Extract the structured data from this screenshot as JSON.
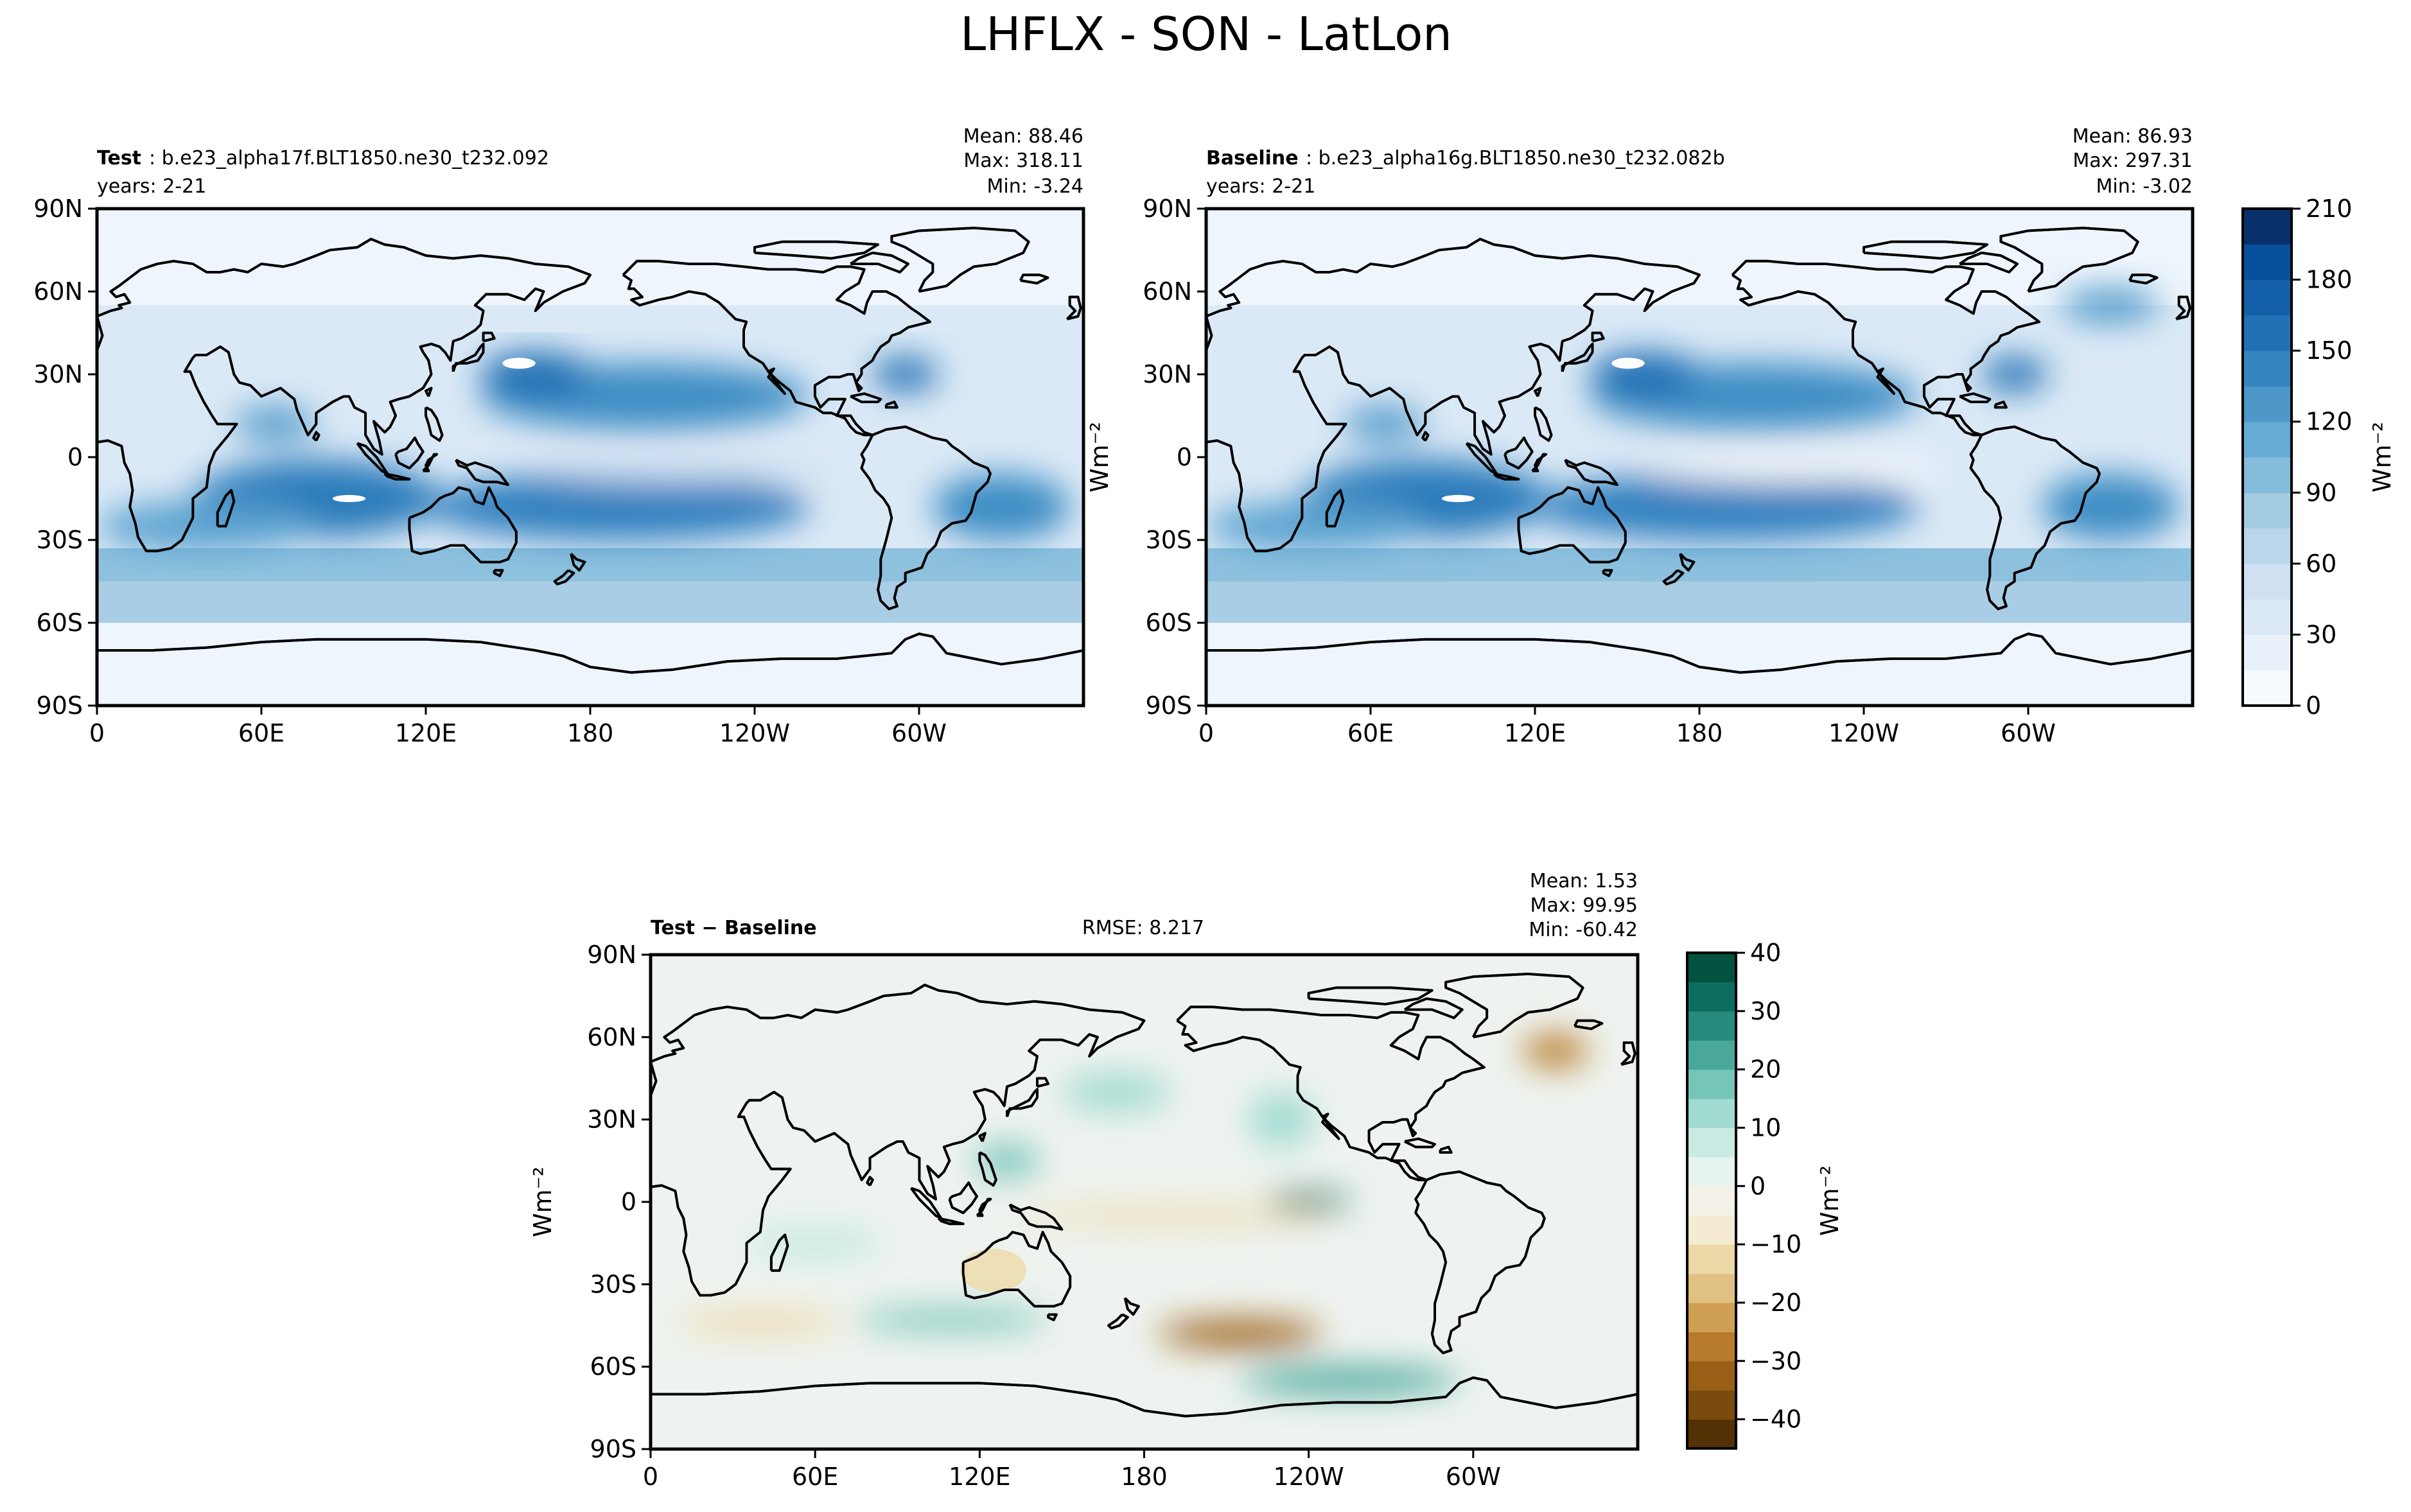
{
  "figure_title": "LHFLX - SON - LatLon",
  "chart_data": [
    {
      "type": "heatmap",
      "id": "test",
      "label_bold": "Test",
      "label_rest": ": b.e23_alpha17f.BLT1850.ne30_t232.092",
      "years": "years: 2-21",
      "stats": [
        "Mean: 88.46",
        "Max: 318.11",
        "Min: -3.24"
      ],
      "mean": 88.46,
      "max": 318.11,
      "min": -3.24,
      "xticks": [
        "0",
        "60E",
        "120E",
        "180",
        "120W",
        "60W"
      ],
      "yticks": [
        "90N",
        "60N",
        "30N",
        "0",
        "30S",
        "60S",
        "90S"
      ],
      "ylabel": ""
    },
    {
      "type": "heatmap",
      "id": "baseline",
      "label_bold": "Baseline",
      "label_rest": ": b.e23_alpha16g.BLT1850.ne30_t232.082b",
      "years": "years: 2-21",
      "stats": [
        "Mean: 86.93",
        "Max: 297.31",
        "Min: -3.02"
      ],
      "mean": 86.93,
      "max": 297.31,
      "min": -3.02,
      "xticks": [
        "0",
        "60E",
        "120E",
        "180",
        "120W",
        "60W"
      ],
      "yticks": [
        "90N",
        "60N",
        "30N",
        "0",
        "30S",
        "60S",
        "90S"
      ],
      "ylabel": "Wm⁻²"
    },
    {
      "type": "heatmap",
      "id": "diff",
      "label_bold": "Test − Baseline",
      "rmse": "RMSE: 8.217",
      "stats": [
        "Mean:  1.53",
        "Max: 99.95",
        "Min: -60.42"
      ],
      "mean": 1.53,
      "max": 99.95,
      "min": -60.42,
      "xticks": [
        "0",
        "60E",
        "120E",
        "180",
        "120W",
        "60W"
      ],
      "yticks": [
        "90N",
        "60N",
        "30N",
        "0",
        "30S",
        "60S",
        "90S"
      ],
      "ylabel": "Wm⁻²"
    }
  ],
  "colorbars": {
    "main": {
      "label": "Wm⁻²",
      "ticks": [
        "0",
        "30",
        "60",
        "90",
        "120",
        "150",
        "180",
        "210"
      ],
      "range": [
        0,
        210
      ],
      "colors": [
        "#f7fbff",
        "#e8f1fa",
        "#dbe9f6",
        "#cee0f2",
        "#bad6eb",
        "#a2cbe2",
        "#84bcdb",
        "#66abd4",
        "#4d97c9",
        "#3585bf",
        "#2271b5",
        "#1460a8",
        "#08509b",
        "#08306b"
      ]
    },
    "diff": {
      "label": "Wm⁻²",
      "ticks": [
        "−40",
        "−30",
        "−20",
        "−10",
        "0",
        "10",
        "20",
        "30",
        "40"
      ],
      "range": [
        -45,
        40
      ],
      "colors": [
        "#543005",
        "#7a4a0e",
        "#9a5f17",
        "#b87b2c",
        "#cfa054",
        "#e0c183",
        "#edd9a8",
        "#f5ead2",
        "#f4f1e6",
        "#e6f3ef",
        "#c9eae2",
        "#a2dbd1",
        "#76c5b9",
        "#4aa89b",
        "#268a7e",
        "#0d6e60",
        "#01523f"
      ]
    }
  }
}
